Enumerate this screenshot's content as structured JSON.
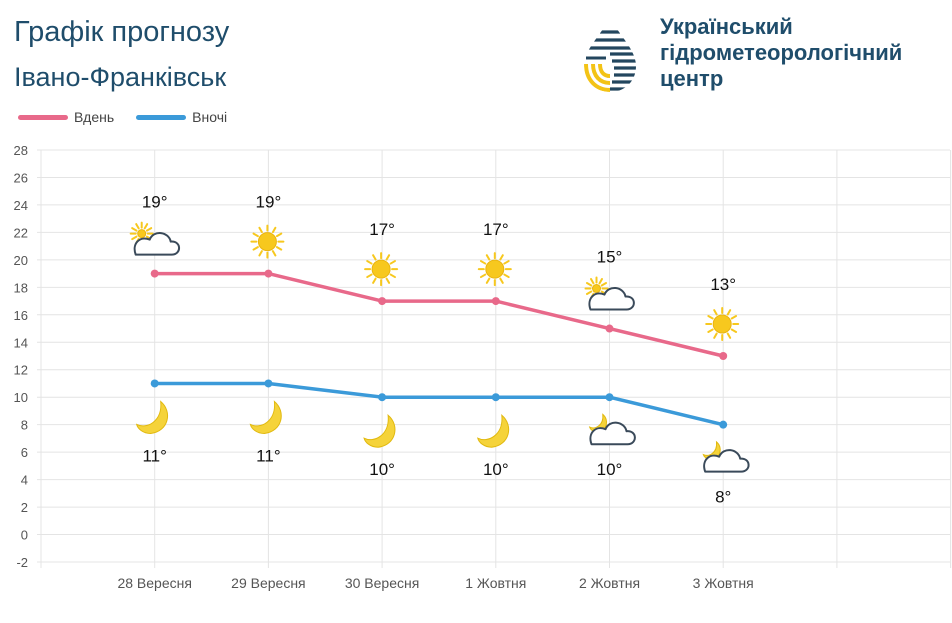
{
  "header": {
    "title": "Графік прогнозу",
    "city": "Івано-Франківськ",
    "org_line1": "Український",
    "org_line2": "гідрометеорологічний",
    "org_line3": "центр"
  },
  "colors": {
    "day": "#e8698a",
    "night": "#3b9ad9",
    "title": "#1f4d6b",
    "sun": "#f7c81e",
    "moon": "#f5d33a"
  },
  "chart_data": {
    "type": "line",
    "categories": [
      "28 Вересня",
      "29 Вересня",
      "30 Вересня",
      "1 Жовтня",
      "2 Жовтня",
      "3 Жовтня"
    ],
    "series": [
      {
        "name": "Вдень",
        "values": [
          19,
          19,
          17,
          17,
          15,
          13
        ],
        "labels": [
          "19°",
          "19°",
          "17°",
          "17°",
          "15°",
          "13°"
        ],
        "icons": [
          "sun-cloud-icon",
          "sun-icon",
          "sun-icon",
          "sun-icon",
          "sun-cloud-icon",
          "sun-icon"
        ]
      },
      {
        "name": "Вночі",
        "values": [
          11,
          11,
          10,
          10,
          10,
          8
        ],
        "labels": [
          "11°",
          "11°",
          "10°",
          "10°",
          "10°",
          "8°"
        ],
        "icons": [
          "moon-icon",
          "moon-icon",
          "moon-icon",
          "moon-icon",
          "moon-cloud-icon",
          "moon-cloud-icon"
        ]
      }
    ],
    "ylim": [
      -2,
      28
    ],
    "yticks": [
      "-2",
      "0",
      "2",
      "4",
      "6",
      "8",
      "10",
      "12",
      "14",
      "16",
      "18",
      "20",
      "22",
      "24",
      "26",
      "28"
    ],
    "grid": true,
    "legend": "top-left"
  }
}
